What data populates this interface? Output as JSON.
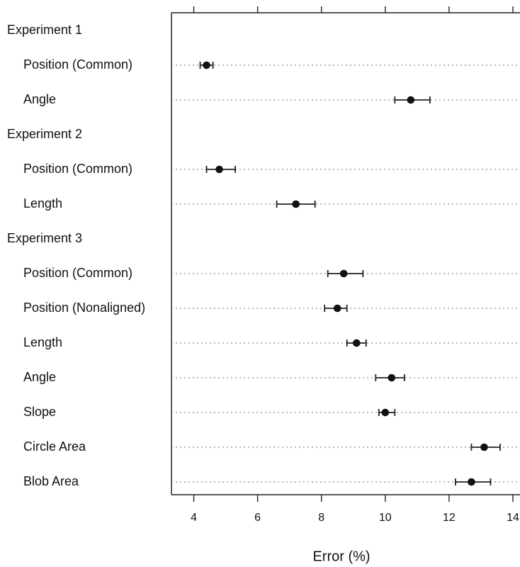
{
  "chart_data": {
    "type": "scatter",
    "title": "",
    "xlabel": "Error (%)",
    "ylabel": "",
    "xlim": [
      3.3,
      14.4
    ],
    "x_ticks": [
      4,
      6,
      8,
      10,
      12,
      14
    ],
    "x_tick_labels": [
      "4",
      "6",
      "8",
      "10",
      "12",
      "14"
    ],
    "grid": "dotted horizontal guide lines",
    "legend": "none",
    "rows": [
      {
        "kind": "group",
        "label": "Experiment 1"
      },
      {
        "kind": "item",
        "label": "Position (Common)",
        "value": 4.4,
        "low": 4.2,
        "high": 4.6
      },
      {
        "kind": "item",
        "label": "Angle",
        "value": 10.8,
        "low": 10.3,
        "high": 11.4
      },
      {
        "kind": "group",
        "label": "Experiment 2"
      },
      {
        "kind": "item",
        "label": "Position (Common)",
        "value": 4.8,
        "low": 4.4,
        "high": 5.3
      },
      {
        "kind": "item",
        "label": "Length",
        "value": 7.2,
        "low": 6.6,
        "high": 7.8
      },
      {
        "kind": "group",
        "label": "Experiment 3"
      },
      {
        "kind": "item",
        "label": "Position (Common)",
        "value": 8.7,
        "low": 8.2,
        "high": 9.3
      },
      {
        "kind": "item",
        "label": "Position (Nonaligned)",
        "value": 8.5,
        "low": 8.1,
        "high": 8.8
      },
      {
        "kind": "item",
        "label": "Length",
        "value": 9.1,
        "low": 8.8,
        "high": 9.4
      },
      {
        "kind": "item",
        "label": "Angle",
        "value": 10.2,
        "low": 9.7,
        "high": 10.6
      },
      {
        "kind": "item",
        "label": "Slope",
        "value": 10.0,
        "low": 9.8,
        "high": 10.3
      },
      {
        "kind": "item",
        "label": "Circle Area",
        "value": 13.1,
        "low": 12.7,
        "high": 13.6
      },
      {
        "kind": "item",
        "label": "Blob Area",
        "value": 12.7,
        "low": 12.2,
        "high": 13.3
      }
    ],
    "colors": {
      "text": "#111111",
      "axis": "#222222",
      "guide": "#8a8a8a",
      "point": "#111111"
    }
  }
}
